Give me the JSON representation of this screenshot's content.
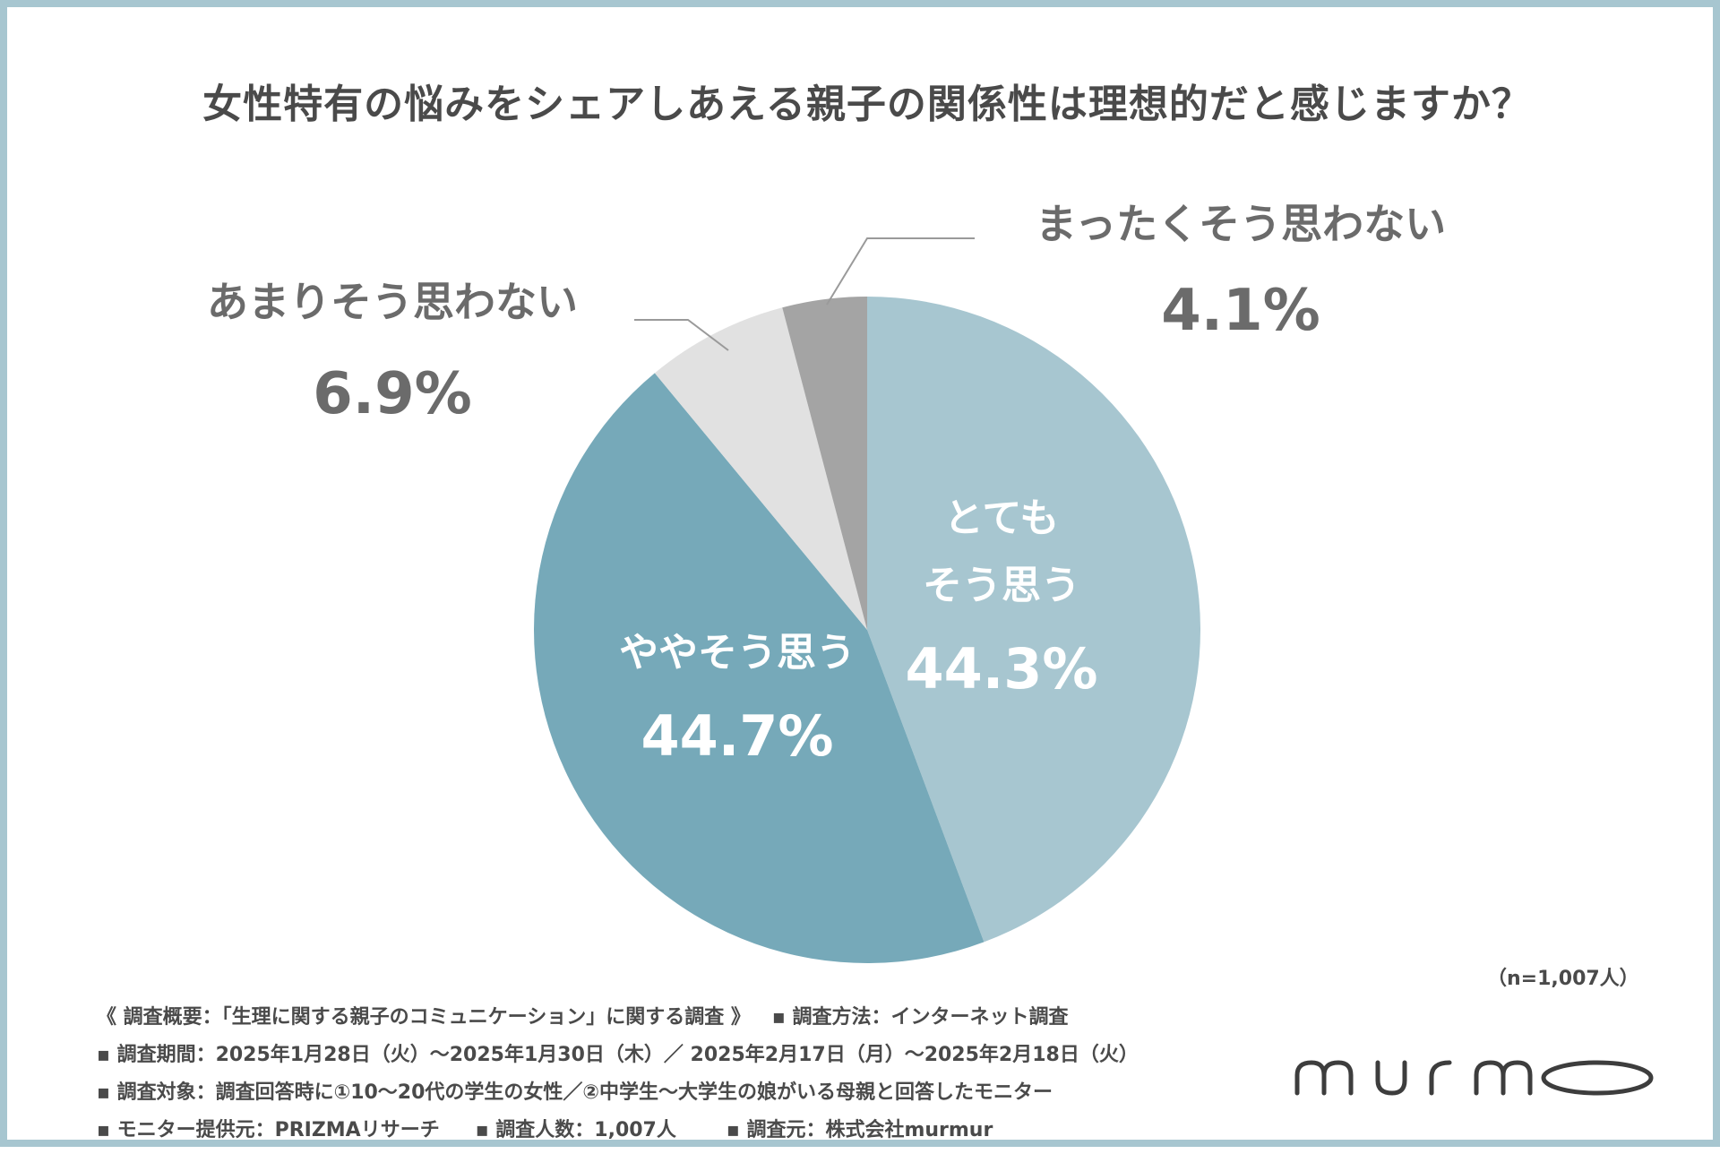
{
  "chart_data": {
    "type": "pie",
    "title": "女性特有の悩みをシェアしあえる親子の関係性は理想的だと感じますか？",
    "slices": [
      {
        "label": "とても\nそう思う",
        "value": 44.3,
        "value_label": "44.3%",
        "color": "#a7c6d0",
        "text_color": "#ffffff"
      },
      {
        "label": "ややそう思う",
        "value": 44.7,
        "value_label": "44.7%",
        "color": "#76a9b9",
        "text_color": "#ffffff"
      },
      {
        "label": "あまりそう思わない",
        "value": 6.9,
        "value_label": "6.9%",
        "color": "#e1e1e1",
        "text_color": "#6b6b6b"
      },
      {
        "label": "まったくそう思わない",
        "value": 4.1,
        "value_label": "4.1%",
        "color": "#a4a4a4",
        "text_color": "#6b6b6b"
      }
    ],
    "start_angle_deg": 0,
    "direction": "clockwise",
    "sample_note": "（n=1,007人）"
  },
  "notes": {
    "line1_a": "《 調査概要：「生理に関する親子のコミュニケーション」に関する調査 》",
    "line1_b": "▪ 調査方法：インターネット調査",
    "line2": "▪ 調査期間：2025年1月28日（火）～2025年1月30日（木）／ 2025年2月17日（月）～2025年2月18日（火）",
    "line3": "▪ 調査対象：調査回答時に①10～20代の学生の女性／②中学生～大学生の娘がいる母親と回答したモニター",
    "line4_a": "▪ モニター提供元：PRIZMAリサーチ",
    "line4_b": "▪ 調査人数：1,007人",
    "line4_c": "▪ 調査元：株式会社murmur"
  },
  "logo": {
    "icon": "murmo-logo-icon",
    "color": "#3d3d3d"
  }
}
